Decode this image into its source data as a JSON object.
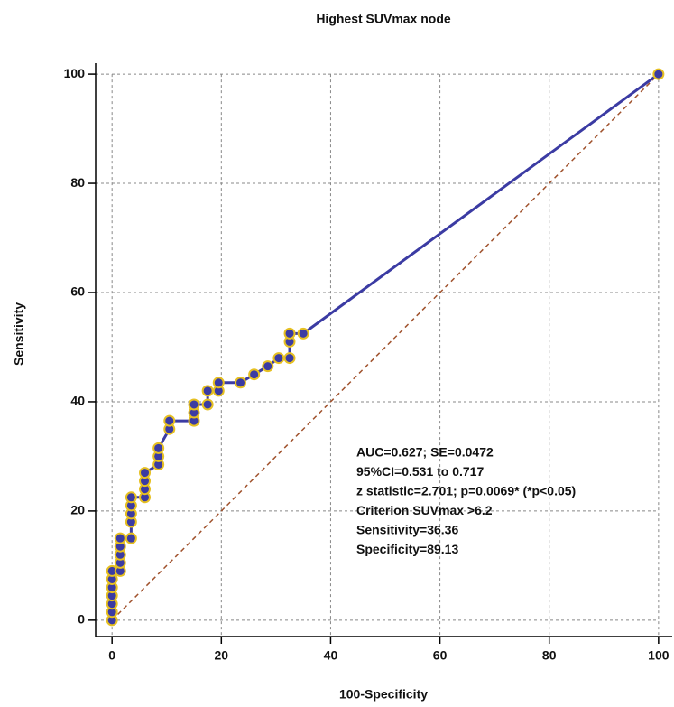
{
  "chart_data": {
    "type": "roc",
    "title": "Highest SUVmax node",
    "x_label": "100-Specificity",
    "y_label": "Sensitivity",
    "xlim": [
      -3,
      102.5
    ],
    "ylim": [
      -3,
      102
    ],
    "xticks": [
      0,
      20,
      40,
      60,
      80,
      100
    ],
    "yticks": [
      0,
      20,
      40,
      60,
      80,
      100
    ],
    "grid": true,
    "series": [
      {
        "color": "#3b3ba3",
        "marker_edge": "#e6c022",
        "x": [
          0,
          0,
          0,
          0,
          0,
          0,
          0,
          1.5,
          1.5,
          1.5,
          1.5,
          1.5,
          3.5,
          3.5,
          3.5,
          3.5,
          3.5,
          6,
          6,
          6,
          6,
          8.5,
          8.5,
          8.5,
          10.5,
          10.5,
          15,
          15,
          15,
          17.5,
          17.5,
          19.5,
          19.5,
          23.5,
          26,
          28.5,
          30.5,
          32.5,
          32.5,
          32.5,
          35,
          100
        ],
        "values": [
          0,
          1.5,
          3,
          4.5,
          6,
          7.5,
          9,
          9,
          10.5,
          12,
          13.5,
          15,
          15,
          18,
          19.5,
          21,
          22.5,
          22.5,
          24,
          25.5,
          27,
          28.5,
          30,
          31.5,
          35,
          36.5,
          36.5,
          38,
          39.5,
          39.5,
          42,
          42,
          43.5,
          43.5,
          45,
          46.5,
          48,
          48,
          51,
          52.5,
          52.5,
          100
        ]
      }
    ],
    "reference_line": {
      "x": [
        0,
        100
      ],
      "values": [
        0,
        100
      ],
      "color": "#a0522d"
    },
    "annotations": [
      "AUC=0.627; SE=0.0472",
      "95%CI=0.531 to 0.717",
      "z statistic=2.701; p=0.0069* (*p<0.05)",
      "Criterion SUVmax >6.2",
      "Sensitivity=36.36",
      "Specificity=89.13"
    ]
  }
}
